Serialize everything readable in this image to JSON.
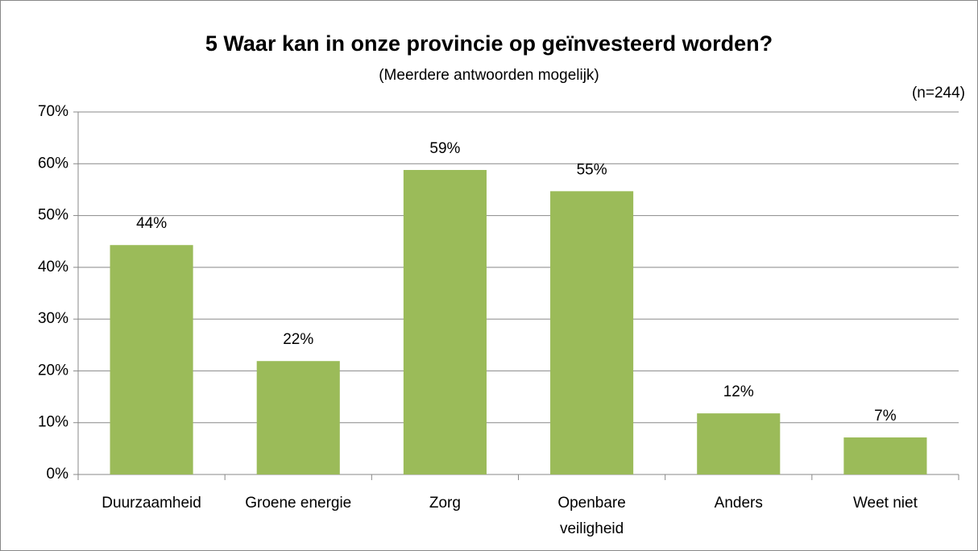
{
  "chart_data": {
    "type": "bar",
    "title": "5 Waar kan in onze provincie op geïnvesteerd worden?",
    "subtitle": "(Meerdere antwoorden mogelijk)",
    "annotation": "(n=244)",
    "categories": [
      "Duurzaamheid",
      "Groene energie",
      "Zorg",
      "Openbare veiligheid",
      "Anders",
      "Weet niet"
    ],
    "values": [
      44.3,
      21.9,
      58.8,
      54.7,
      11.8,
      7.15
    ],
    "value_labels": [
      "44%",
      "22%",
      "59%",
      "55%",
      "12%",
      "7%"
    ],
    "color": "#9bbb59",
    "ylim": [
      0,
      70
    ],
    "yticks": [
      {
        "value": 0,
        "label": "0%"
      },
      {
        "value": 10,
        "label": "10%"
      },
      {
        "value": 20,
        "label": "20%"
      },
      {
        "value": 30,
        "label": "30%"
      },
      {
        "value": 40,
        "label": "40%"
      },
      {
        "value": 50,
        "label": "50%"
      },
      {
        "value": 60,
        "label": "60%"
      },
      {
        "value": 70,
        "label": "70%"
      }
    ],
    "grid": true
  }
}
